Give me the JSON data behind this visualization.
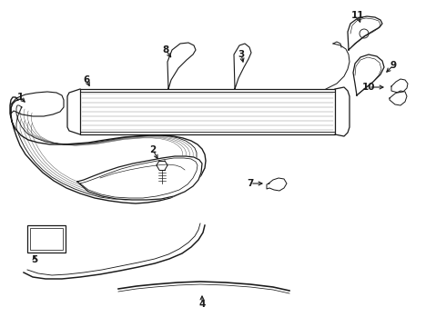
{
  "background_color": "#ffffff",
  "line_color": "#1a1a1a",
  "lw": 0.9,
  "fig_w": 4.9,
  "fig_h": 3.6,
  "dpi": 100
}
